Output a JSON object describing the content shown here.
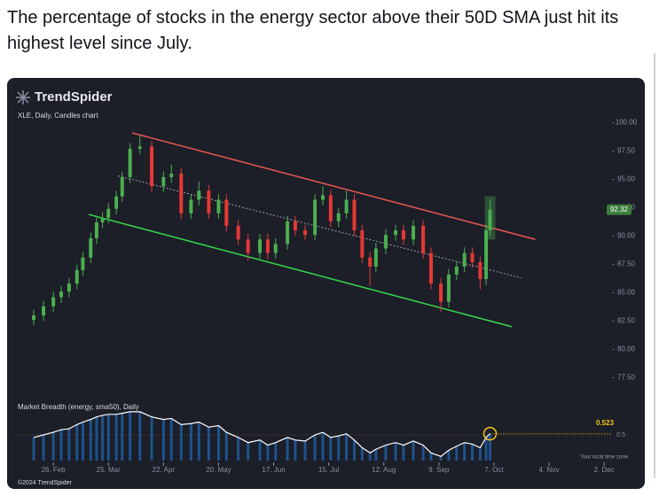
{
  "post": {
    "text": "The percentage of stocks in the energy sector above their 50D SMA just hit its highest level since July."
  },
  "branding": {
    "logo": "TrendSpider",
    "footer": "©2024 TrendSpider",
    "timezone": "Your local time zone"
  },
  "chart_data": [
    {
      "type": "candlestick",
      "title": "XLE, Daily, Candles chart",
      "up_color": "#4caf50",
      "down_color": "#e53935",
      "x": [
        -10,
        -5,
        0,
        4,
        8,
        12,
        15,
        19,
        22,
        25,
        28,
        32,
        35,
        39,
        44,
        50,
        56,
        60,
        65,
        70,
        74,
        79,
        84,
        88,
        94,
        99,
        105,
        109,
        113,
        119,
        123,
        128,
        133,
        137,
        141,
        145,
        149,
        153,
        157,
        161,
        164,
        169,
        174,
        178,
        183,
        188,
        192,
        197,
        201,
        205,
        209,
        213,
        217,
        220,
        222
      ],
      "open": [
        82.6,
        83.0,
        83.8,
        84.6,
        85.1,
        85.8,
        87.0,
        88.1,
        89.8,
        91.2,
        91.6,
        92.4,
        93.5,
        95.2,
        97.7,
        97.9,
        94.4,
        95.2,
        95.5,
        92.0,
        93.2,
        94.0,
        92.0,
        93.2,
        90.9,
        89.7,
        88.5,
        89.7,
        88.5,
        89.3,
        91.3,
        90.5,
        90.1,
        93.2,
        93.6,
        91.3,
        92.0,
        93.2,
        90.5,
        88.1,
        87.3,
        88.9,
        90.1,
        90.5,
        89.7,
        90.9,
        88.5,
        85.8,
        84.2,
        86.6,
        87.3,
        88.5,
        87.7,
        86.2,
        90.5
      ],
      "high": [
        83.5,
        84.3,
        85.1,
        85.6,
        86.3,
        87.5,
        88.6,
        90.3,
        91.7,
        92.1,
        92.9,
        94.0,
        95.7,
        98.2,
        98.9,
        98.4,
        95.7,
        96.3,
        96.0,
        93.7,
        94.8,
        94.5,
        93.7,
        93.7,
        91.4,
        90.2,
        90.2,
        90.2,
        89.8,
        91.8,
        91.8,
        91.0,
        93.7,
        94.4,
        94.1,
        92.5,
        94.0,
        93.7,
        91.0,
        88.6,
        89.4,
        90.6,
        91.0,
        91.0,
        91.4,
        91.4,
        89.0,
        86.3,
        87.1,
        87.8,
        89.0,
        89.0,
        88.2,
        91.0,
        93.2
      ],
      "low": [
        82.1,
        82.5,
        83.3,
        84.1,
        84.6,
        85.3,
        86.5,
        87.6,
        89.3,
        90.7,
        91.1,
        91.9,
        93.0,
        94.7,
        97.2,
        93.9,
        93.9,
        94.7,
        91.5,
        91.5,
        92.7,
        91.5,
        91.5,
        90.4,
        89.2,
        87.8,
        88.0,
        87.9,
        88.0,
        88.8,
        90.0,
        89.6,
        89.6,
        92.7,
        90.8,
        90.8,
        91.5,
        90.0,
        87.6,
        85.6,
        86.8,
        88.4,
        89.6,
        89.2,
        89.2,
        88.0,
        85.3,
        83.3,
        83.7,
        86.1,
        86.8,
        87.2,
        85.3,
        85.7,
        90.0
      ],
      "close": [
        83.0,
        83.8,
        84.6,
        85.1,
        85.8,
        87.0,
        88.1,
        89.8,
        91.2,
        91.6,
        92.4,
        93.5,
        95.2,
        97.7,
        97.9,
        94.4,
        95.2,
        95.5,
        92.0,
        93.2,
        94.0,
        92.0,
        93.2,
        90.9,
        89.7,
        88.5,
        89.7,
        88.5,
        89.3,
        91.3,
        90.5,
        90.1,
        93.2,
        93.6,
        91.3,
        92.0,
        93.2,
        90.5,
        88.1,
        87.3,
        88.9,
        90.1,
        90.5,
        89.7,
        90.9,
        88.5,
        85.8,
        84.2,
        86.6,
        87.3,
        88.5,
        87.7,
        86.2,
        90.5,
        92.32
      ],
      "xlim": [
        -19,
        284
      ],
      "xticks": [
        {
          "value": 0,
          "label": "26. Feb"
        },
        {
          "value": 28,
          "label": "25. Mar"
        },
        {
          "value": 56,
          "label": "22. Apr"
        },
        {
          "value": 84,
          "label": "20. May"
        },
        {
          "value": 112,
          "label": "17. Jun"
        },
        {
          "value": 140,
          "label": "15. Jul"
        },
        {
          "value": 168,
          "label": "12. Aug"
        },
        {
          "value": 196,
          "label": "9. Sep"
        },
        {
          "value": 224,
          "label": "7. Oct"
        },
        {
          "value": 252,
          "label": "4. Nov"
        },
        {
          "value": 280,
          "label": "2. Dec"
        }
      ],
      "ylim": [
        75.5,
        103.4
      ],
      "yticks": [
        {
          "value": 77.5,
          "label": "77.50"
        },
        {
          "value": 80,
          "label": "80.00"
        },
        {
          "value": 82.5,
          "label": "82.50"
        },
        {
          "value": 85,
          "label": "85.00"
        },
        {
          "value": 87.5,
          "label": "87.50"
        },
        {
          "value": 90,
          "label": "90.00"
        },
        {
          "value": 92.5,
          "label": "92.50"
        },
        {
          "value": 95,
          "label": "95.00"
        },
        {
          "value": 97.5,
          "label": "97.50"
        },
        {
          "value": 100,
          "label": "100.00"
        }
      ],
      "trendlines": [
        {
          "color": "#e0554f",
          "dashed": false,
          "x": [
            40,
            245
          ],
          "y": [
            99.1,
            89.7
          ]
        },
        {
          "color": "#9aa0aa",
          "dashed": true,
          "x": [
            33,
            238
          ],
          "y": [
            95.3,
            86.3
          ]
        },
        {
          "color": "#35d14a",
          "dashed": false,
          "x": [
            18,
            233
          ],
          "y": [
            91.9,
            82.0
          ]
        }
      ]
    },
    {
      "type": "area",
      "title": "Market Breadth (energy, sma50), Daily",
      "color": "#ffffff",
      "fill": "#1f5fa8",
      "highlight_color": "#f5c518",
      "x": [
        -10,
        -5,
        0,
        4,
        8,
        12,
        15,
        19,
        22,
        25,
        28,
        32,
        35,
        39,
        44,
        50,
        56,
        60,
        65,
        70,
        74,
        79,
        84,
        88,
        94,
        99,
        105,
        109,
        113,
        119,
        123,
        128,
        133,
        137,
        141,
        145,
        149,
        153,
        157,
        161,
        164,
        169,
        174,
        178,
        183,
        188,
        192,
        197,
        201,
        205,
        209,
        213,
        217,
        220,
        222
      ],
      "values": [
        0.45,
        0.5,
        0.55,
        0.6,
        0.62,
        0.7,
        0.75,
        0.8,
        0.85,
        0.88,
        0.9,
        0.9,
        0.92,
        0.95,
        0.95,
        0.85,
        0.8,
        0.82,
        0.7,
        0.72,
        0.75,
        0.65,
        0.68,
        0.55,
        0.45,
        0.35,
        0.4,
        0.3,
        0.35,
        0.45,
        0.4,
        0.38,
        0.5,
        0.55,
        0.45,
        0.48,
        0.52,
        0.4,
        0.25,
        0.15,
        0.22,
        0.3,
        0.35,
        0.3,
        0.38,
        0.3,
        0.15,
        0.08,
        0.2,
        0.28,
        0.35,
        0.32,
        0.25,
        0.45,
        0.523
      ],
      "xlim": [
        -19,
        284
      ],
      "ylim": [
        0,
        1
      ],
      "yticks": [
        0.5
      ]
    }
  ]
}
